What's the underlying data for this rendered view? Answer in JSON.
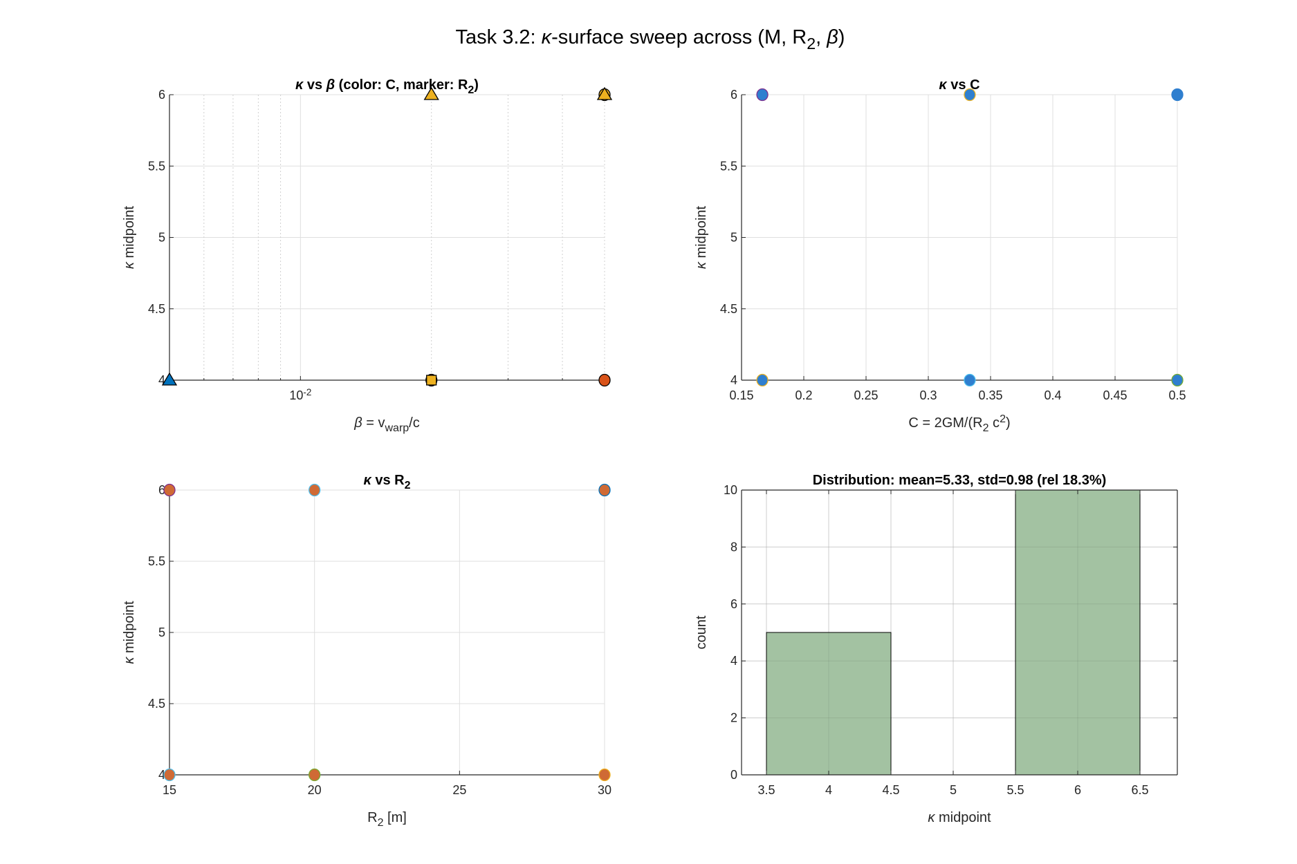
{
  "figure_title": [
    {
      "t": "Task 3.2: "
    },
    {
      "t": "κ",
      "i": true
    },
    {
      "t": "-surface sweep across (M, R"
    },
    {
      "t": "2",
      "sub": true
    },
    {
      "t": ", "
    },
    {
      "t": "β",
      "i": true
    },
    {
      "t": ")"
    }
  ],
  "colors": {
    "blue": "#0072BD",
    "orange": "#D95319",
    "yellow": "#EDB120",
    "purple": "#7E2F8E",
    "green": "#77AC30",
    "lightblue": "#4DBEEE",
    "blue2": "#2F7FCF",
    "orange2": "#CF6A35",
    "bar": "#A3C2A2",
    "grid": "#DFDFDF",
    "axis": "#262626"
  },
  "chart_data": [
    {
      "type": "scatter",
      "title": [
        {
          "t": "κ",
          "i": true
        },
        {
          "t": " vs "
        },
        {
          "t": "β",
          "i": true
        },
        {
          "t": " (color: C, marker: R"
        },
        {
          "t": "2",
          "sub": true
        },
        {
          "t": ")"
        }
      ],
      "xlabel": [
        {
          "t": "β",
          "i": true
        },
        {
          "t": " = v"
        },
        {
          "t": "warp",
          "sub": true
        },
        {
          "t": "/c"
        }
      ],
      "ylabel": [
        {
          "t": "κ",
          "i": true
        },
        {
          "t": " midpoint"
        }
      ],
      "xscale": "log",
      "xlim": [
        0.005,
        0.05
      ],
      "ylim": [
        4,
        6
      ],
      "xticks": [
        {
          "v": 0.01,
          "label": "10",
          "sup": "-2"
        }
      ],
      "xminor": [
        0.005,
        0.006,
        0.007,
        0.008,
        0.009,
        0.02,
        0.03,
        0.04,
        0.05
      ],
      "yticks": [
        {
          "v": 4,
          "label": "4"
        },
        {
          "v": 4.5,
          "label": "4.5"
        },
        {
          "v": 5,
          "label": "5"
        },
        {
          "v": 5.5,
          "label": "5.5"
        },
        {
          "v": 6,
          "label": "6"
        }
      ],
      "box": false,
      "points": [
        {
          "x": 0.005,
          "y": 4,
          "marker": "triangle",
          "fill": "#0072BD",
          "edge": "#000000"
        },
        {
          "x": 0.02,
          "y": 6,
          "marker": "triangle",
          "fill": "#EDB120",
          "edge": "#000000"
        },
        {
          "x": 0.02,
          "y": 4,
          "marker": "circle",
          "fill": "#D95319",
          "edge": "#000000"
        },
        {
          "x": 0.02,
          "y": 4,
          "marker": "square",
          "fill": "#EDB120",
          "edge": "#000000"
        },
        {
          "x": 0.05,
          "y": 6,
          "marker": "circle",
          "fill": "#EDB120",
          "edge": "#000000"
        },
        {
          "x": 0.05,
          "y": 6,
          "marker": "triangle",
          "fill": "#EDB120",
          "edge": "#000000"
        },
        {
          "x": 0.05,
          "y": 4,
          "marker": "circle",
          "fill": "#D95319",
          "edge": "#000000"
        }
      ]
    },
    {
      "type": "scatter",
      "title": [
        {
          "t": "κ",
          "i": true
        },
        {
          "t": " vs C"
        }
      ],
      "xlabel": [
        {
          "t": "C = 2GM/(R"
        },
        {
          "t": "2",
          "sub": true
        },
        {
          "t": " c"
        },
        {
          "t": "2",
          "sup": true
        },
        {
          "t": ")"
        }
      ],
      "ylabel": [
        {
          "t": "κ",
          "i": true
        },
        {
          "t": " midpoint"
        }
      ],
      "xscale": "linear",
      "xlim": [
        0.15,
        0.5
      ],
      "ylim": [
        4,
        6
      ],
      "xticks": [
        {
          "v": 0.15,
          "label": "0.15"
        },
        {
          "v": 0.2,
          "label": "0.2"
        },
        {
          "v": 0.25,
          "label": "0.25"
        },
        {
          "v": 0.3,
          "label": "0.3"
        },
        {
          "v": 0.35,
          "label": "0.35"
        },
        {
          "v": 0.4,
          "label": "0.4"
        },
        {
          "v": 0.45,
          "label": "0.45"
        },
        {
          "v": 0.5,
          "label": "0.5"
        }
      ],
      "yticks": [
        {
          "v": 4,
          "label": "4"
        },
        {
          "v": 4.5,
          "label": "4.5"
        },
        {
          "v": 5,
          "label": "5"
        },
        {
          "v": 5.5,
          "label": "5.5"
        },
        {
          "v": 6,
          "label": "6"
        }
      ],
      "box": false,
      "points": [
        {
          "x": 0.1667,
          "y": 6,
          "marker": "circle",
          "fill": "#2F7FCF",
          "edge": "#7E2F8E"
        },
        {
          "x": 0.3333,
          "y": 6,
          "marker": "circle",
          "fill": "#2F7FCF",
          "edge": "#EDB120"
        },
        {
          "x": 0.5,
          "y": 6,
          "marker": "circle",
          "fill": "#2F7FCF",
          "edge": "#2F7FCF"
        },
        {
          "x": 0.1667,
          "y": 4,
          "marker": "circle",
          "fill": "#2F7FCF",
          "edge": "#EDB120"
        },
        {
          "x": 0.3333,
          "y": 4,
          "marker": "circle",
          "fill": "#2F7FCF",
          "edge": "#4DBEEE"
        },
        {
          "x": 0.5,
          "y": 4,
          "marker": "circle",
          "fill": "#2F7FCF",
          "edge": "#77AC30"
        }
      ]
    },
    {
      "type": "scatter",
      "title": [
        {
          "t": "κ",
          "i": true
        },
        {
          "t": " vs R"
        },
        {
          "t": "2",
          "sub": true
        }
      ],
      "xlabel": [
        {
          "t": "R"
        },
        {
          "t": "2",
          "sub": true
        },
        {
          "t": " [m]"
        }
      ],
      "ylabel": [
        {
          "t": "κ",
          "i": true
        },
        {
          "t": " midpoint"
        }
      ],
      "xscale": "linear",
      "xlim": [
        15,
        30
      ],
      "ylim": [
        4,
        6
      ],
      "xticks": [
        {
          "v": 15,
          "label": "15"
        },
        {
          "v": 20,
          "label": "20"
        },
        {
          "v": 25,
          "label": "25"
        },
        {
          "v": 30,
          "label": "30"
        }
      ],
      "yticks": [
        {
          "v": 4,
          "label": "4"
        },
        {
          "v": 4.5,
          "label": "4.5"
        },
        {
          "v": 5,
          "label": "5"
        },
        {
          "v": 5.5,
          "label": "5.5"
        },
        {
          "v": 6,
          "label": "6"
        }
      ],
      "box": false,
      "points": [
        {
          "x": 15,
          "y": 6,
          "marker": "circle",
          "fill": "#CF6A35",
          "edge": "#7E2F8E"
        },
        {
          "x": 20,
          "y": 6,
          "marker": "circle",
          "fill": "#CF6A35",
          "edge": "#4DBEEE"
        },
        {
          "x": 30,
          "y": 6,
          "marker": "circle",
          "fill": "#CF6A35",
          "edge": "#0072BD"
        },
        {
          "x": 15,
          "y": 4,
          "marker": "circle",
          "fill": "#CF6A35",
          "edge": "#4DBEEE"
        },
        {
          "x": 20,
          "y": 4,
          "marker": "circle",
          "fill": "#CF6A35",
          "edge": "#77AC30"
        },
        {
          "x": 30,
          "y": 4,
          "marker": "circle",
          "fill": "#CF6A35",
          "edge": "#EDB120"
        }
      ]
    },
    {
      "type": "bar",
      "title": [
        {
          "t": "Distribution: mean=5.33, std=0.98 (rel 18.3%)"
        }
      ],
      "xlabel": [
        {
          "t": "κ",
          "i": true
        },
        {
          "t": " midpoint"
        }
      ],
      "ylabel": [
        {
          "t": "count"
        }
      ],
      "xscale": "linear",
      "xlim": [
        3.3,
        6.8
      ],
      "ylim": [
        0,
        10
      ],
      "xticks": [
        {
          "v": 3.5,
          "label": "3.5"
        },
        {
          "v": 4,
          "label": "4"
        },
        {
          "v": 4.5,
          "label": "4.5"
        },
        {
          "v": 5,
          "label": "5"
        },
        {
          "v": 5.5,
          "label": "5.5"
        },
        {
          "v": 6,
          "label": "6"
        },
        {
          "v": 6.5,
          "label": "6.5"
        }
      ],
      "yticks": [
        {
          "v": 0,
          "label": "0"
        },
        {
          "v": 2,
          "label": "2"
        },
        {
          "v": 4,
          "label": "4"
        },
        {
          "v": 6,
          "label": "6"
        },
        {
          "v": 8,
          "label": "8"
        },
        {
          "v": 10,
          "label": "10"
        }
      ],
      "box": true,
      "bins": [
        {
          "from": 3.5,
          "to": 4.5,
          "count": 5
        },
        {
          "from": 5.5,
          "to": 6.5,
          "count": 10
        }
      ]
    }
  ]
}
